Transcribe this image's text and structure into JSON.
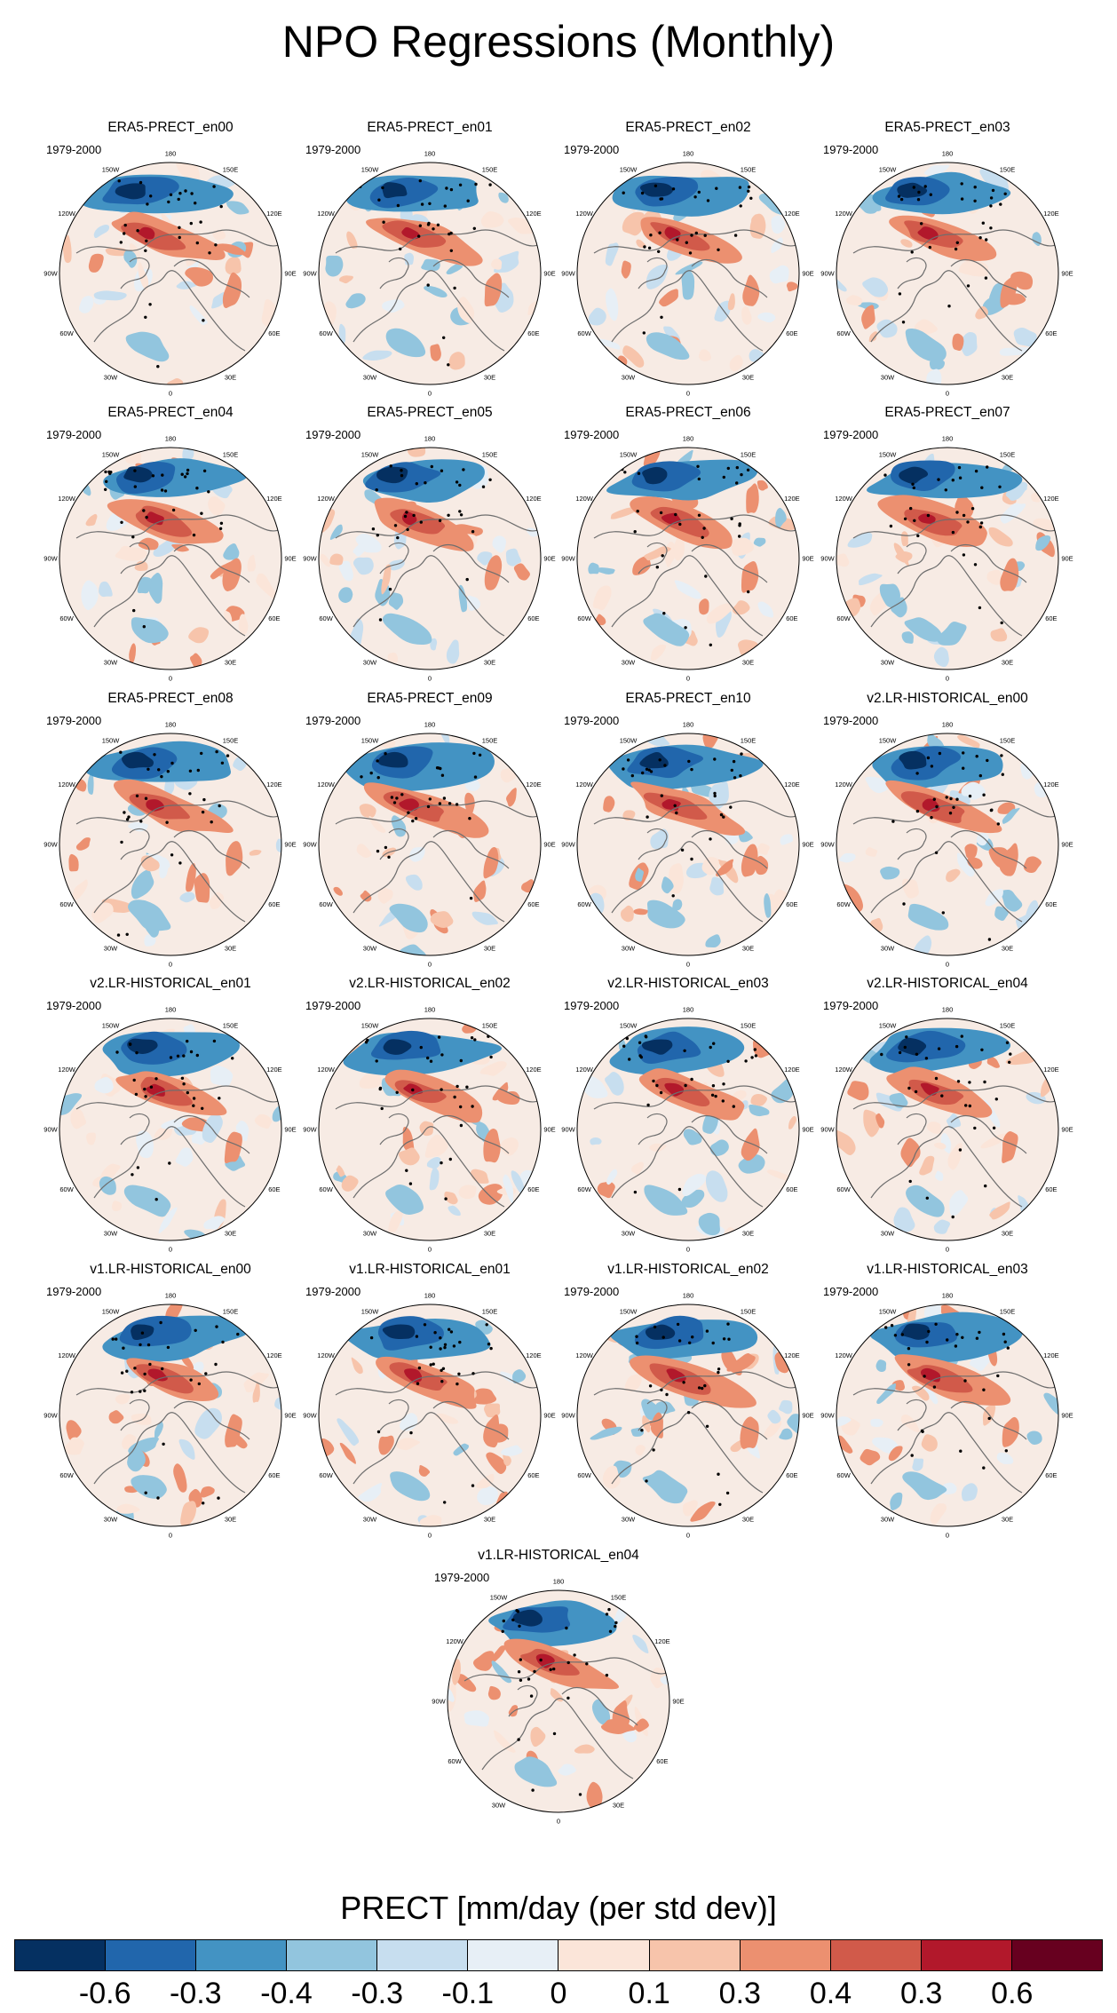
{
  "title": "NPO Regressions (Monthly)",
  "chart_data": {
    "type": "polar-stereographic contour map panels",
    "variable": "PRECT",
    "colorbar_label": "PRECT [mm/day (per std dev)]",
    "colorbar_levels": [
      "-0.6",
      "-0.3",
      "-0.4",
      "-0.3",
      "-0.1",
      "0",
      "0.1",
      "0.3",
      "0.4",
      "0.3",
      "0.6"
    ],
    "colorbar_colors": [
      "#053061",
      "#2166ac",
      "#4393c3",
      "#92c5de",
      "#c7deef",
      "#e7eff6",
      "#fbe5d9",
      "#f7c4ab",
      "#ec9070",
      "#d15a4a",
      "#b2182b",
      "#67001f"
    ],
    "longitude_labels": [
      "180",
      "150E",
      "120E",
      "90E",
      "60E",
      "30E",
      "0",
      "30W",
      "60W",
      "90W",
      "120W",
      "150W"
    ],
    "panels": [
      {
        "title": "ERA5-PRECT_en00",
        "period": "1979-2000"
      },
      {
        "title": "ERA5-PRECT_en01",
        "period": "1979-2000"
      },
      {
        "title": "ERA5-PRECT_en02",
        "period": "1979-2000"
      },
      {
        "title": "ERA5-PRECT_en03",
        "period": "1979-2000"
      },
      {
        "title": "ERA5-PRECT_en04",
        "period": "1979-2000"
      },
      {
        "title": "ERA5-PRECT_en05",
        "period": "1979-2000"
      },
      {
        "title": "ERA5-PRECT_en06",
        "period": "1979-2000"
      },
      {
        "title": "ERA5-PRECT_en07",
        "period": "1979-2000"
      },
      {
        "title": "ERA5-PRECT_en08",
        "period": "1979-2000"
      },
      {
        "title": "ERA5-PRECT_en09",
        "period": "1979-2000"
      },
      {
        "title": "ERA5-PRECT_en10",
        "period": "1979-2000"
      },
      {
        "title": "v2.LR-HISTORICAL_en00",
        "period": "1979-2000"
      },
      {
        "title": "v2.LR-HISTORICAL_en01",
        "period": "1979-2000"
      },
      {
        "title": "v2.LR-HISTORICAL_en02",
        "period": "1979-2000"
      },
      {
        "title": "v2.LR-HISTORICAL_en03",
        "period": "1979-2000"
      },
      {
        "title": "v2.LR-HISTORICAL_en04",
        "period": "1979-2000"
      },
      {
        "title": "v1.LR-HISTORICAL_en00",
        "period": "1979-2000"
      },
      {
        "title": "v1.LR-HISTORICAL_en01",
        "period": "1979-2000"
      },
      {
        "title": "v1.LR-HISTORICAL_en02",
        "period": "1979-2000"
      },
      {
        "title": "v1.LR-HISTORICAL_en03",
        "period": "1979-2000"
      },
      {
        "title": "v1.LR-HISTORICAL_en04",
        "period": "1979-2000"
      }
    ]
  }
}
